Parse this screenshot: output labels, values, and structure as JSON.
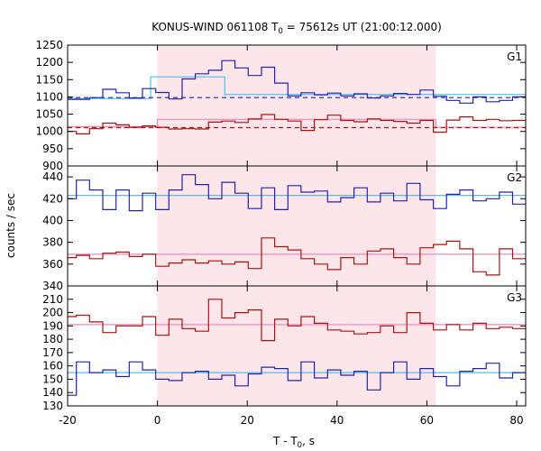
{
  "chart_data": {
    "type": "line",
    "title_main": "KONUS-WIND 061108 T",
    "title_sub": "0",
    "title_rest": " = 75612s UT (21:00:12.000)",
    "xlabel_main": "T - T",
    "xlabel_sub": "0",
    "xlabel_rest": ", s",
    "ylabel": "counts / sec",
    "xlim": [
      -20,
      82
    ],
    "x_ticks": [
      -20,
      0,
      20,
      40,
      60,
      80
    ],
    "shaded_interval": [
      0,
      62
    ],
    "colors": {
      "blue": "#2222aa",
      "red": "#aa1111",
      "light_blue": "#55bbee",
      "light_red": "#ee88bb",
      "shade": "#fde6ea"
    },
    "bin_width": 2.944,
    "bin_start": -21.0,
    "panels": [
      {
        "label": "G1",
        "ylim": [
          900,
          1250
        ],
        "y_ticks": [
          900,
          950,
          1000,
          1050,
          1100,
          1150,
          1200,
          1250
        ],
        "series": [
          {
            "color": "blue",
            "values": [
              1093,
              1093,
              1098,
              1122,
              1112,
              1097,
              1124,
              1113,
              1094,
              1152,
              1167,
              1177,
              1205,
              1184,
              1162,
              1186,
              1140,
              1103,
              1112,
              1106,
              1111,
              1103,
              1109,
              1097,
              1103,
              1110,
              1107,
              1120,
              1102,
              1090,
              1082,
              1100,
              1086,
              1090,
              1100,
              1107,
              1094,
              1115,
              1106,
              1095,
              1104,
              1098,
              1117,
              1101,
              1090,
              1100
            ]
          },
          {
            "color": "red",
            "values": [
              1000,
              993,
              1008,
              1024,
              1019,
              1012,
              1016,
              1012,
              1007,
              1008,
              1007,
              1027,
              1030,
              1026,
              1036,
              1049,
              1035,
              1030,
              1003,
              1034,
              1047,
              1032,
              1028,
              1036,
              1032,
              1029,
              1024,
              1032,
              998,
              1033,
              1042,
              1032,
              1035,
              1031,
              1032,
              1022,
              1018,
              1001,
              1015,
              1014,
              1026,
              1031,
              1011,
              1004,
              990,
              980
            ]
          }
        ],
        "reference_lines": [
          {
            "color": "blue",
            "style": "dashed",
            "y": 1098
          },
          {
            "color": "red",
            "style": "dashed",
            "y": 1011
          }
        ],
        "model_steps": [
          {
            "color": "light_blue",
            "segments": [
              [
                -20,
                -1.5,
                1095
              ],
              [
                -1.5,
                15,
                1158
              ],
              [
                15,
                82,
                1107
              ]
            ]
          },
          {
            "color": "light_red",
            "segments": [
              [
                -20,
                0,
                1014
              ],
              [
                0,
                62,
                1035
              ],
              [
                62,
                82,
                1012
              ]
            ]
          }
        ]
      },
      {
        "label": "G2",
        "ylim": [
          340,
          450
        ],
        "y_ticks": [
          340,
          360,
          380,
          400,
          420,
          440
        ],
        "series": [
          {
            "color": "blue",
            "values": [
              420,
              437,
              428,
              410,
              428,
              409,
              425,
              410,
              428,
              442,
              433,
              420,
              435,
              425,
              411,
              430,
              410,
              432,
              426,
              427,
              417,
              421,
              430,
              417,
              425,
              418,
              434,
              419,
              411,
              424,
              428,
              418,
              420,
              426,
              415,
              430,
              417,
              414,
              411,
              442,
              430,
              417,
              435,
              420,
              425,
              404
            ]
          },
          {
            "color": "red",
            "values": [
              366,
              368,
              365,
              370,
              371,
              367,
              369,
              358,
              361,
              364,
              361,
              363,
              360,
              362,
              356,
              384,
              376,
              373,
              365,
              360,
              355,
              366,
              360,
              372,
              374,
              366,
              360,
              375,
              378,
              381,
              374,
              353,
              350,
              374,
              365,
              362,
              373,
              388,
              387,
              381,
              380,
              376,
              358,
              368,
              379,
              368
            ]
          }
        ],
        "model_steps": [
          {
            "color": "light_blue",
            "segments": [
              [
                -20,
                82,
                423
              ]
            ]
          },
          {
            "color": "light_red",
            "segments": [
              [
                -20,
                82,
                369
              ]
            ]
          }
        ]
      },
      {
        "label": "G3",
        "ylim": [
          130,
          220
        ],
        "y_ticks": [
          130,
          140,
          150,
          160,
          170,
          180,
          190,
          200,
          210
        ],
        "series": [
          {
            "color": "blue",
            "values": [
              138,
              163,
              155,
              157,
              152,
              163,
              157,
              150,
              149,
              155,
              156,
              150,
              153,
              145,
              154,
              159,
              158,
              149,
              163,
              151,
              157,
              153,
              156,
              142,
              155,
              163,
              150,
              158,
              152,
              145,
              156,
              158,
              162,
              151,
              155,
              161,
              159,
              151,
              149,
              162,
              155,
              152,
              157,
              144,
              156,
              140
            ]
          },
          {
            "color": "red",
            "values": [
              197,
              198,
              193,
              185,
              190,
              190,
              197,
              183,
              195,
              188,
              186,
              210,
              196,
              200,
              202,
              179,
              195,
              190,
              197,
              192,
              187,
              186,
              184,
              185,
              190,
              185,
              200,
              192,
              187,
              191,
              187,
              192,
              188,
              189,
              188,
              190,
              182,
              190,
              178,
              191,
              185,
              195,
              186,
              188,
              186,
              180
            ]
          }
        ],
        "model_steps": [
          {
            "color": "light_blue",
            "segments": [
              [
                -20,
                82,
                155
              ]
            ]
          },
          {
            "color": "light_red",
            "segments": [
              [
                -20,
                82,
                191
              ]
            ]
          }
        ]
      }
    ]
  }
}
